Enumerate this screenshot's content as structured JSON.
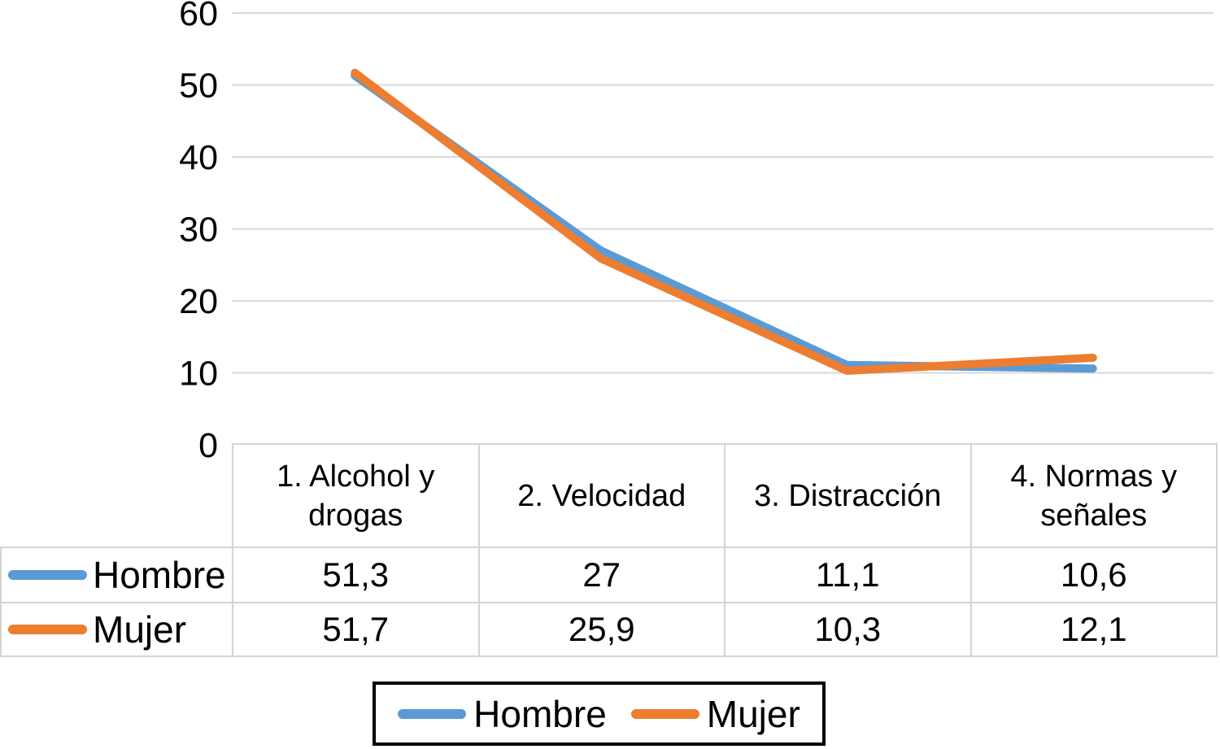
{
  "chart_data": {
    "type": "line",
    "categories": [
      "1. Alcohol y drogas",
      "2. Velocidad",
      "3. Distracción",
      "4. Normas y señales"
    ],
    "series": [
      {
        "name": "Hombre",
        "color": "#5B9BD5",
        "values": [
          51.3,
          27,
          11.1,
          10.6
        ],
        "display": [
          "51,3",
          "27",
          "11,1",
          "10,6"
        ]
      },
      {
        "name": "Mujer",
        "color": "#ED7D31",
        "values": [
          51.7,
          25.9,
          10.3,
          12.1
        ],
        "display": [
          "51,7",
          "25,9",
          "10,3",
          "12,1"
        ]
      }
    ],
    "y_ticks": [
      0,
      10,
      20,
      30,
      40,
      50,
      60
    ],
    "ylim": [
      0,
      60
    ],
    "grid": true,
    "legend_position": "bottom",
    "colors": {
      "gridline": "#D9D9D9",
      "table_border": "#D4D4D4",
      "legend_border": "#000000",
      "text": "#000000"
    }
  },
  "legend": {
    "items": [
      {
        "label": "Hombre",
        "color": "#5B9BD5"
      },
      {
        "label": "Mujer",
        "color": "#ED7D31"
      }
    ]
  }
}
